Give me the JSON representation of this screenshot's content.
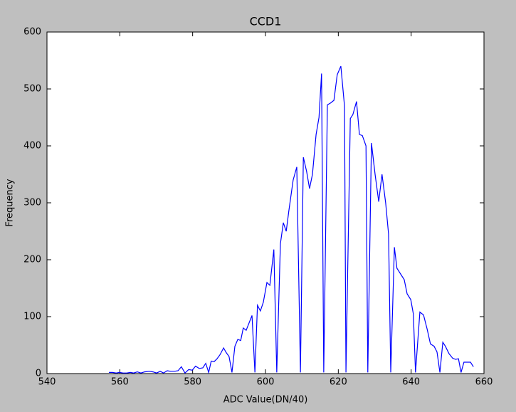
{
  "chart_data": {
    "type": "line",
    "title": "CCD1",
    "x_label": "ADC Value(DN/40)",
    "y_label": "Frequency",
    "x": [
      557.0,
      558.0,
      559.0,
      559.9,
      560.9,
      561.9,
      562.9,
      563.8,
      564.8,
      565.8,
      566.8,
      568.1,
      569.1,
      570.1,
      571.1,
      572.0,
      573.0,
      574.0,
      575.0,
      576.0,
      576.9,
      577.9,
      578.9,
      579.9,
      580.8,
      581.8,
      582.8,
      583.6,
      584.4,
      585.1,
      585.9,
      586.7,
      587.5,
      588.5,
      589.2,
      590.0,
      590.8,
      591.6,
      592.4,
      593.2,
      593.9,
      594.7,
      596.3,
      597.1,
      597.8,
      598.6,
      599.4,
      600.4,
      601.2,
      602.3,
      603.1,
      604.1,
      604.9,
      605.7,
      606.4,
      607.6,
      608.6,
      609.6,
      610.4,
      611.3,
      612.1,
      612.9,
      613.9,
      614.7,
      615.4,
      616.0,
      617.0,
      617.8,
      618.8,
      619.7,
      620.7,
      621.7,
      622.1,
      623.3,
      624.0,
      625.0,
      625.8,
      626.6,
      627.6,
      628.1,
      629.1,
      630.1,
      631.1,
      632.0,
      633.0,
      633.8,
      634.4,
      635.4,
      636.1,
      637.1,
      638.1,
      638.9,
      639.9,
      640.6,
      641.2,
      642.4,
      643.4,
      644.4,
      645.3,
      646.3,
      647.1,
      647.9,
      648.7,
      649.4,
      650.4,
      651.4,
      652.2,
      653.0,
      653.7,
      654.5,
      655.5,
      656.3,
      657.1
    ],
    "series": [
      {
        "name": "CCD1",
        "color": "#0000ff",
        "values": [
          2,
          2,
          1,
          2,
          1,
          1,
          2,
          1,
          3,
          1,
          3,
          4,
          3,
          1,
          4,
          1,
          5,
          4,
          4,
          5,
          12,
          1,
          7,
          6,
          13,
          9,
          10,
          18,
          2,
          22,
          21,
          26,
          33,
          45,
          37,
          30,
          2,
          48,
          60,
          58,
          80,
          76,
          102,
          2,
          120,
          110,
          125,
          160,
          155,
          218,
          2,
          228,
          265,
          250,
          285,
          340,
          363,
          2,
          380,
          355,
          325,
          350,
          420,
          450,
          527,
          2,
          472,
          475,
          480,
          525,
          540,
          470,
          2,
          448,
          455,
          478,
          420,
          418,
          400,
          2,
          405,
          350,
          302,
          350,
          300,
          245,
          2,
          222,
          185,
          175,
          165,
          140,
          130,
          105,
          2,
          108,
          103,
          78,
          52,
          48,
          38,
          2,
          55,
          48,
          35,
          27,
          25,
          26,
          2,
          20,
          20,
          20,
          12
        ]
      }
    ],
    "xlim": [
      540,
      660
    ],
    "xticks": [
      540,
      560,
      580,
      600,
      620,
      640,
      660
    ],
    "ylim": [
      0,
      600
    ],
    "yticks": [
      0,
      100,
      200,
      300,
      400,
      500,
      600
    ],
    "grid": false
  }
}
